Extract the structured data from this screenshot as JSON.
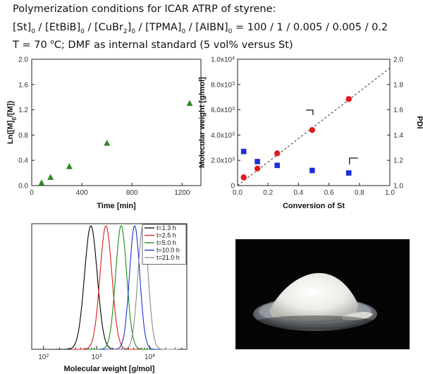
{
  "header": {
    "line1": "Polymerization conditions for ICAR ATRP of styrene:",
    "line2": {
      "parts": [
        {
          "t": "[St]"
        },
        {
          "t": "0",
          "s": "sub"
        },
        {
          "t": " / [EtBiB]"
        },
        {
          "t": "0",
          "s": "sub"
        },
        {
          "t": " / [CuBr"
        },
        {
          "t": "2",
          "s": "sub"
        },
        {
          "t": "]"
        },
        {
          "t": "0",
          "s": "sub"
        },
        {
          "t": " / [TPMA]"
        },
        {
          "t": "0",
          "s": "sub"
        },
        {
          "t": " / [AIBN]"
        },
        {
          "t": "0",
          "s": "sub"
        },
        {
          "t": " = 100 / 1 / 0.005 / 0.005 / 0.2"
        }
      ]
    },
    "line3": {
      "parts": [
        {
          "t": "T = 70 "
        },
        {
          "t": "o",
          "s": "sup"
        },
        {
          "t": "C; DMF as internal standard (5 vol% versus St)"
        }
      ]
    }
  },
  "chart_data": [
    {
      "id": "kinetics",
      "type": "scatter",
      "xlabel": "Time [min]",
      "ylabel_parts": [
        {
          "t": "Ln([M]"
        },
        {
          "t": "0",
          "s": "sub"
        },
        {
          "t": "/[M])"
        }
      ],
      "xlim": [
        0,
        1350
      ],
      "ylim": [
        0,
        2.0
      ],
      "xticks": [
        0,
        400,
        800,
        1200
      ],
      "yticks": [
        0.0,
        0.4,
        0.8,
        1.2,
        1.6,
        2.0
      ],
      "ytick_labels": [
        "0.0",
        "0.4",
        "0.8",
        "1.2",
        "1.6",
        "2.0"
      ],
      "marker_color": "#2e8b20",
      "series": [
        {
          "x": [
            78,
            150,
            300,
            600,
            1260
          ],
          "y": [
            0.04,
            0.13,
            0.3,
            0.67,
            1.3
          ]
        }
      ]
    },
    {
      "id": "mw_conversion",
      "type": "scatter",
      "xlabel": "Conversion of St",
      "ylabel": "Molecular weight [g/mol]",
      "y2label": "PDI",
      "xlim": [
        0,
        1.0
      ],
      "ylim": [
        0,
        10000
      ],
      "y2lim": [
        1.0,
        2.0
      ],
      "xticks": [
        0.0,
        0.2,
        0.4,
        0.6,
        0.8,
        1.0
      ],
      "xtick_labels": [
        "0.0",
        "0.2",
        "0.4",
        "0.6",
        "0.8",
        "1.0"
      ],
      "yticks": [
        0,
        2000,
        4000,
        6000,
        8000,
        10000
      ],
      "ytick_labels": [
        {
          "m": "0",
          "e": ""
        },
        {
          "m": "2.0x10",
          "e": "3"
        },
        {
          "m": "4.0x10",
          "e": "3"
        },
        {
          "m": "6.0x10",
          "e": "3"
        },
        {
          "m": "8.0x10",
          "e": "3"
        },
        {
          "m": "1.0x10",
          "e": "4"
        }
      ],
      "y2ticks": [
        1.0,
        1.2,
        1.4,
        1.6,
        1.8,
        2.0
      ],
      "y2tick_labels": [
        "1.0",
        "1.2",
        "1.4",
        "1.6",
        "1.8",
        "2.0"
      ],
      "theory_line": {
        "x": [
          0,
          1.0
        ],
        "y": [
          0,
          9300
        ]
      },
      "series": [
        {
          "kind": "Mn",
          "color": "#e01b1b",
          "marker": "circle",
          "x": [
            0.04,
            0.13,
            0.26,
            0.49,
            0.73
          ],
          "y": [
            650,
            1350,
            2550,
            4400,
            6850
          ]
        },
        {
          "kind": "PDI",
          "color": "#1c2fd6",
          "marker": "square",
          "x": [
            0.04,
            0.13,
            0.26,
            0.49,
            0.73
          ],
          "y": [
            1.27,
            1.19,
            1.16,
            1.12,
            1.1
          ]
        }
      ]
    },
    {
      "id": "gpc",
      "type": "line",
      "xlabel": "Molecular weight [g/mol]",
      "xscale": "log",
      "xlim": [
        60,
        50000
      ],
      "xticks": [
        {
          "value": 100,
          "m": "10",
          "e": "2"
        },
        {
          "value": 1000,
          "m": "10",
          "e": "3"
        },
        {
          "value": 10000,
          "m": "10",
          "e": "4"
        }
      ],
      "legend": "top-right",
      "series": [
        {
          "name": "t=1.3 h",
          "color": "#000000",
          "peak_mw": 780,
          "width": 0.16
        },
        {
          "name": "t=2.5 h",
          "color": "#e01b1b",
          "peak_mw": 1500,
          "width": 0.15
        },
        {
          "name": "t=5.0 h",
          "color": "#1a8a1a",
          "peak_mw": 2900,
          "width": 0.14
        },
        {
          "name": "t=10.0 h",
          "color": "#1c2fd6",
          "peak_mw": 5200,
          "width": 0.13
        },
        {
          "name": "t=21.0 h",
          "color": "#8a8a8a",
          "peak_mw": 7500,
          "width": 0.13
        }
      ]
    }
  ]
}
